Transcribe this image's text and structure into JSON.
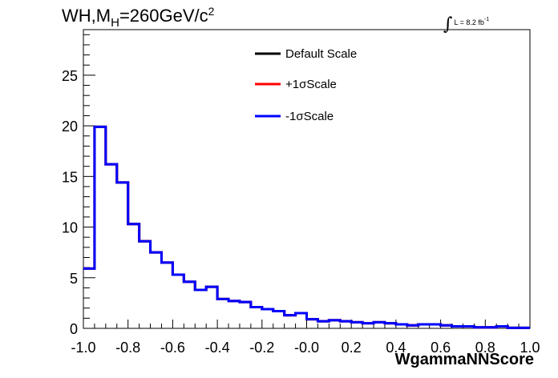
{
  "header": {
    "title_main": "WH,M",
    "title_sub": "H",
    "title_rest": "=260GeV/c",
    "title_sup": "2",
    "lumi_integral": "∫",
    "lumi_text": "L = 8.2 fb",
    "lumi_sup": "-1"
  },
  "chart_data": {
    "type": "line",
    "title": "WH,MH=260GeV/c 2",
    "xlabel": "WgammaNNScore",
    "ylabel": "",
    "xlim": [
      -1.0,
      1.0
    ],
    "ylim": [
      0,
      29.5
    ],
    "grid": false,
    "legend_position": "top-center",
    "x_ticks": [
      "-1.0",
      "-0.8",
      "-0.6",
      "-0.4",
      "-0.2",
      "-0.0",
      "0.2",
      "0.4",
      "0.6",
      "0.8",
      "1.0"
    ],
    "y_ticks": [
      "0",
      "5",
      "10",
      "15",
      "20",
      "25"
    ],
    "bin_edges": [
      -1.0,
      -0.95,
      -0.9,
      -0.85,
      -0.8,
      -0.75,
      -0.7,
      -0.65,
      -0.6,
      -0.55,
      -0.5,
      -0.45,
      -0.4,
      -0.35,
      -0.3,
      -0.25,
      -0.2,
      -0.15,
      -0.1,
      -0.05,
      0.0,
      0.05,
      0.1,
      0.15,
      0.2,
      0.25,
      0.3,
      0.35,
      0.4,
      0.45,
      0.5,
      0.55,
      0.6,
      0.65,
      0.7,
      0.75,
      0.8,
      0.85,
      0.9,
      0.95,
      1.0
    ],
    "series": [
      {
        "name": "Default Scale",
        "color": "#000000",
        "values": [
          5.9,
          19.9,
          16.2,
          14.4,
          10.3,
          8.6,
          7.5,
          6.5,
          5.3,
          4.6,
          3.8,
          4.1,
          2.9,
          2.7,
          2.6,
          2.1,
          1.9,
          1.7,
          1.3,
          1.5,
          0.9,
          0.7,
          0.8,
          0.7,
          0.6,
          0.5,
          0.6,
          0.5,
          0.4,
          0.3,
          0.4,
          0.4,
          0.3,
          0.2,
          0.2,
          0.1,
          0.1,
          0.2,
          0.05,
          0.05
        ]
      },
      {
        "name": "+1σScale",
        "color": "#ff0000",
        "values": [
          5.9,
          19.9,
          16.2,
          14.4,
          10.3,
          8.6,
          7.5,
          6.5,
          5.3,
          4.6,
          3.8,
          4.1,
          2.9,
          2.7,
          2.6,
          2.1,
          1.9,
          1.7,
          1.3,
          1.5,
          0.9,
          0.7,
          0.8,
          0.7,
          0.6,
          0.5,
          0.6,
          0.5,
          0.4,
          0.3,
          0.4,
          0.4,
          0.3,
          0.2,
          0.2,
          0.1,
          0.1,
          0.2,
          0.05,
          0.05
        ]
      },
      {
        "name": "-1σScale",
        "color": "#0000ff",
        "values": [
          5.9,
          19.9,
          16.2,
          14.4,
          10.3,
          8.6,
          7.5,
          6.5,
          5.3,
          4.6,
          3.8,
          4.1,
          2.9,
          2.7,
          2.6,
          2.1,
          1.9,
          1.7,
          1.3,
          1.5,
          0.9,
          0.7,
          0.8,
          0.7,
          0.6,
          0.5,
          0.6,
          0.5,
          0.4,
          0.3,
          0.4,
          0.4,
          0.3,
          0.2,
          0.2,
          0.1,
          0.1,
          0.2,
          0.05,
          0.05
        ]
      }
    ]
  }
}
